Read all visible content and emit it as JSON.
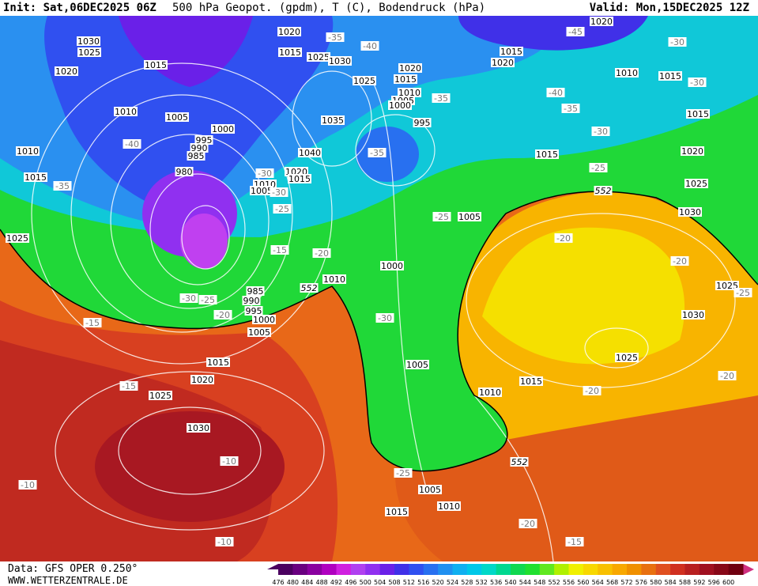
{
  "header": {
    "init": "Init: Sat,06DEC2025 06Z",
    "title": "500 hPa Geopot. (gpdm), T (C), Bodendruck (hPa)",
    "valid": "Valid: Mon,15DEC2025 12Z"
  },
  "map": {
    "isobar_labels": [
      1030,
      1025,
      1020,
      1015,
      1010,
      1005,
      1000,
      995,
      990,
      985,
      980,
      1010,
      1015,
      1025,
      1020,
      1015,
      1025,
      1030,
      1025,
      1020,
      1015,
      1010,
      1005,
      1000,
      995,
      1035,
      1040,
      1020,
      1015,
      1010,
      1005,
      1020,
      1015,
      1020,
      1010,
      1015,
      1015,
      1020,
      1025,
      1030,
      1015,
      1005,
      1000,
      1010,
      985,
      990,
      995,
      1000,
      1005,
      1015,
      1020,
      1025,
      1030,
      1025,
      1030,
      1025,
      1015,
      1010,
      1005,
      1005,
      1010,
      1015
    ],
    "temperature_labels": [
      -35,
      -40,
      -45,
      -30,
      -30,
      -40,
      -35,
      -30,
      -35,
      -40,
      -35,
      -35,
      -30,
      -30,
      -25,
      -25,
      -25,
      -20,
      -15,
      -20,
      -30,
      -15,
      -20,
      -25,
      -30,
      -15,
      -20,
      -20,
      -10,
      -10,
      -10,
      -25,
      -20,
      -15,
      -25,
      -20
    ],
    "height_labels": [
      552,
      552,
      552
    ]
  },
  "colorbar": {
    "labels": [
      476,
      480,
      484,
      488,
      492,
      496,
      500,
      504,
      508,
      512,
      516,
      520,
      524,
      528,
      532,
      536,
      540,
      544,
      548,
      552,
      556,
      560,
      564,
      568,
      572,
      576,
      580,
      584,
      588,
      592,
      596,
      600
    ],
    "colors": [
      "#4b0060",
      "#6a0080",
      "#8a00a0",
      "#b000c0",
      "#d020e0",
      "#b040f0",
      "#9030f0",
      "#6a20e8",
      "#4030e8",
      "#3050f0",
      "#2870f0",
      "#2090f0",
      "#10b0f0",
      "#00c8e8",
      "#00d8c8",
      "#00d890",
      "#10d850",
      "#20e030",
      "#60e820",
      "#b0f000",
      "#f0f000",
      "#f8d800",
      "#f8c000",
      "#f8a800",
      "#f09000",
      "#e87010",
      "#e05020",
      "#d03020",
      "#b82020",
      "#a01020",
      "#880818",
      "#700010"
    ]
  },
  "footer": {
    "source": "Data: GFS OPER 0.250°",
    "url": "WWW.WETTERZENTRALE.DE"
  }
}
